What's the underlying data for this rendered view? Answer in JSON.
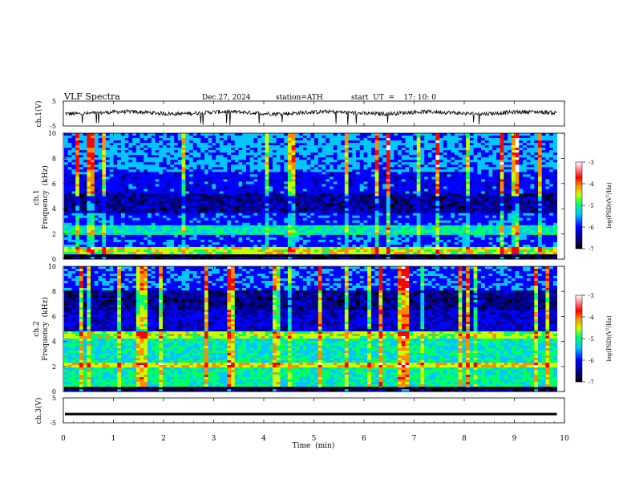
{
  "header": {
    "title": "VLF  Spectra",
    "date": "Dec.27, 2024",
    "station": "station=ATH",
    "start": "start  UT  =    17: 10: 0"
  },
  "chart_data": [
    {
      "type": "line",
      "panel": "ch1-waveform",
      "ylabel": "ch.1(V)",
      "ytick_labels": [
        "5",
        "-5"
      ],
      "ylim": [
        -5,
        5
      ],
      "xlim": [
        0,
        10
      ],
      "line_color": "#000000",
      "note": "continuous noisy trace near 0 V with sparse downward spikes"
    },
    {
      "type": "heatmap",
      "panel": "ch1-spectrogram",
      "ylabel": "ch.1\nFrequency  (kHz)",
      "ylabel_lines": [
        "ch.1",
        "Frequency  (kHz)"
      ],
      "ytick_labels": [
        "0",
        "2",
        "4",
        "6",
        "8",
        "10"
      ],
      "yticks": [
        0,
        2,
        4,
        6,
        8,
        10
      ],
      "ylim": [
        0,
        10
      ],
      "xlim": [
        0,
        9.85
      ],
      "colorbar": {
        "label": "log(PSD)(V²/Hz)",
        "label_base": "log(PSD)(V",
        "label_sup": "2",
        "label_tail": "/Hz)",
        "ticks": [
          -3,
          -4,
          -5,
          -6,
          -7
        ],
        "tick_labels": [
          "-3",
          "-4",
          "-5",
          "-6",
          "-7"
        ],
        "range": [
          -7,
          -3
        ]
      }
    },
    {
      "type": "heatmap",
      "panel": "ch2-spectrogram",
      "ylabel": "ch.2\nFrequency  (kHz)",
      "ylabel_lines": [
        "ch.2",
        "Frequency  (kHz)"
      ],
      "ytick_labels": [
        "0",
        "2",
        "4",
        "6",
        "8",
        "10"
      ],
      "yticks": [
        0,
        2,
        4,
        6,
        8,
        10
      ],
      "ylim": [
        0,
        10
      ],
      "xlim": [
        0,
        9.85
      ],
      "colorbar": {
        "label": "log(PSD)(V²/Hz)",
        "label_base": "log(PSD)(V",
        "label_sup": "2",
        "label_tail": "/Hz)",
        "ticks": [
          -3,
          -4,
          -5,
          -6,
          -7
        ],
        "tick_labels": [
          "-3",
          "-4",
          "-5",
          "-6",
          "-7"
        ],
        "range": [
          -7,
          -3
        ]
      }
    },
    {
      "type": "line",
      "panel": "ch3-waveform",
      "ylabel": "ch.3(V)",
      "ytick_labels": [
        "5",
        "-5"
      ],
      "ylim": [
        -5,
        5
      ],
      "xlim": [
        0,
        10
      ],
      "line_color": "#000000",
      "note": "flat trace near -1.5 V"
    }
  ],
  "xaxis": {
    "label": "Time  (min)",
    "ticks": [
      0,
      1,
      2,
      3,
      4,
      5,
      6,
      7,
      8,
      9,
      10
    ],
    "tick_labels": [
      "0",
      "1",
      "2",
      "3",
      "4",
      "5",
      "6",
      "7",
      "8",
      "9",
      "10"
    ],
    "range": [
      0,
      10
    ]
  },
  "colormap": [
    "#000000",
    "#00008b",
    "#0000ff",
    "#00c8ff",
    "#00ff64",
    "#c8ff00",
    "#ff8c00",
    "#ff0000",
    "#ffffff"
  ]
}
